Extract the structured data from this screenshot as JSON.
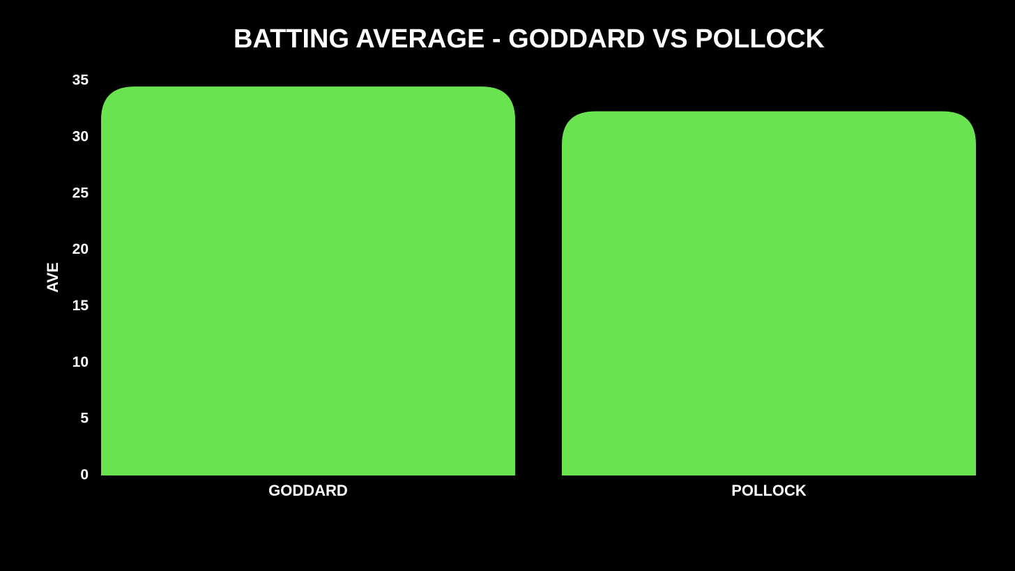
{
  "chart_data": {
    "type": "bar",
    "title": "BATTING AVERAGE - GODDARD VS POLLOCK",
    "y_label": "AVE",
    "categories": [
      "GODDARD",
      "POLLOCK"
    ],
    "values": [
      34.5,
      32.3
    ],
    "color": "#6ae351",
    "ylim": [
      0,
      35
    ],
    "yticks": [
      0,
      5,
      10,
      15,
      20,
      25,
      30,
      35
    ],
    "grid": false
  }
}
